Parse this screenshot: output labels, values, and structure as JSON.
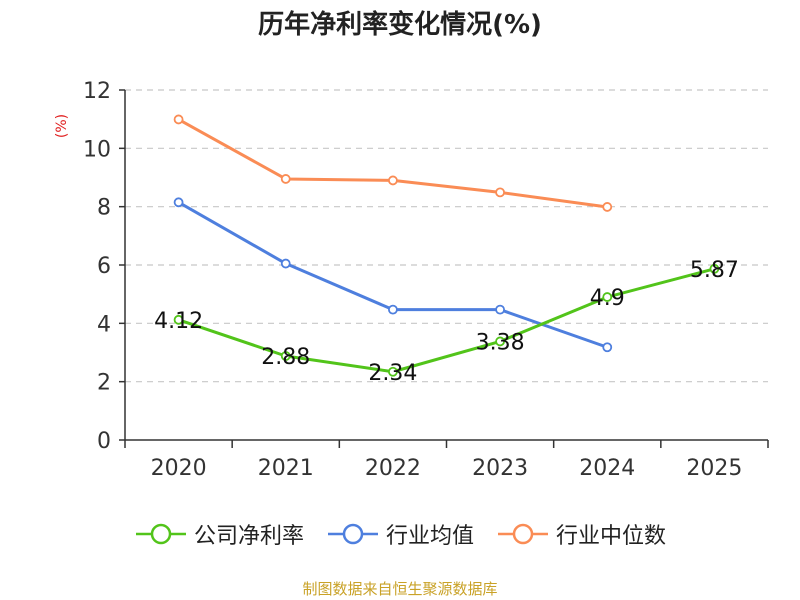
{
  "chart_data": {
    "type": "line",
    "title": "历年净利率变化情况(%)",
    "ylabel": "(%)",
    "xlabel": "",
    "categories": [
      "2020",
      "2021",
      "2022",
      "2023",
      "2024",
      "2025"
    ],
    "ylim": [
      0,
      12
    ],
    "yticks": [
      0,
      2,
      4,
      6,
      8,
      10,
      12
    ],
    "grid": true,
    "legend_position": "bottom",
    "series": [
      {
        "name": "公司净利率",
        "color": "#52c41a",
        "values": [
          4.12,
          2.88,
          2.34,
          3.38,
          4.9,
          5.87
        ],
        "labels": [
          "4.12",
          "2.88",
          "2.34",
          "3.38",
          "4.9",
          "5.87"
        ]
      },
      {
        "name": "行业均值",
        "color": "#4e7fde",
        "values": [
          8.15,
          6.05,
          4.47,
          4.47,
          3.18,
          null
        ]
      },
      {
        "name": "行业中位数",
        "color": "#fa8c55",
        "values": [
          10.99,
          8.95,
          8.9,
          8.49,
          7.99,
          null
        ]
      }
    ]
  },
  "source": "制图数据来自恒生聚源数据库"
}
